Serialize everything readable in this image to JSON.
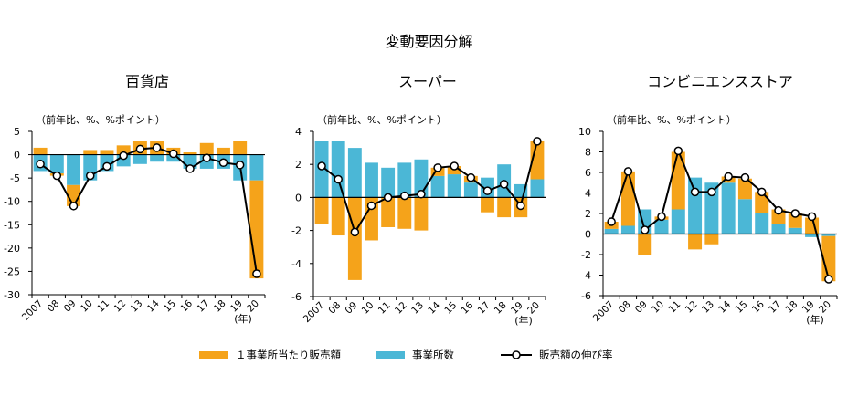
{
  "figure_title": "変動要因分解",
  "colors": {
    "per_store": "#F5A31A",
    "stores": "#4BB7D6",
    "growth_line": "#000000",
    "marker_fill": "#ffffff"
  },
  "legend": {
    "per_store": "１事業所当たり販売額",
    "stores": "事業所数",
    "growth": "販売額の伸び率"
  },
  "chart_data": [
    {
      "type": "bar",
      "title": "百貨店",
      "ylabel": "（前年比、%、%ポイント）",
      "xunit": "(年)",
      "categories": [
        "2007",
        "08",
        "09",
        "10",
        "11",
        "12",
        "13",
        "14",
        "15",
        "16",
        "17",
        "18",
        "19",
        "20"
      ],
      "ylim": [
        -30,
        5
      ],
      "yticks": [
        5,
        0,
        -5,
        -10,
        -15,
        -20,
        -25,
        -30
      ],
      "series": [
        {
          "key": "per_store",
          "name": "１事業所当たり販売額",
          "values": [
            1.5,
            -0.5,
            -4.5,
            1.0,
            1.0,
            2.0,
            3.0,
            3.0,
            1.5,
            0.5,
            2.5,
            1.5,
            3.0,
            -21.0
          ]
        },
        {
          "key": "stores",
          "name": "事業所数",
          "values": [
            -3.5,
            -4.0,
            -6.5,
            -5.5,
            -3.5,
            -2.5,
            -2.0,
            -1.5,
            -1.5,
            -3.0,
            -3.0,
            -3.0,
            -5.5,
            -5.5
          ]
        },
        {
          "key": "growth",
          "name": "販売額の伸び率",
          "values": [
            -2.0,
            -4.5,
            -11.0,
            -4.5,
            -2.5,
            -0.2,
            1.2,
            1.5,
            0.2,
            -3.0,
            -0.7,
            -1.7,
            -2.2,
            -25.5
          ]
        }
      ]
    },
    {
      "type": "bar",
      "title": "スーパー",
      "ylabel": "（前年比、%、%ポイント）",
      "xunit": "(年)",
      "categories": [
        "2007",
        "08",
        "09",
        "10",
        "11",
        "12",
        "13",
        "14",
        "15",
        "16",
        "17",
        "18",
        "19",
        "20"
      ],
      "ylim": [
        -6,
        4
      ],
      "yticks": [
        4,
        2,
        0,
        -2,
        -4,
        -6
      ],
      "series": [
        {
          "key": "per_store",
          "name": "１事業所当たり販売額",
          "values": [
            -1.6,
            -2.3,
            -5.0,
            -2.6,
            -1.8,
            -1.9,
            -2.0,
            0.5,
            0.5,
            0.4,
            -0.9,
            -1.2,
            -1.2,
            2.3
          ]
        },
        {
          "key": "stores",
          "name": "事業所数",
          "values": [
            3.4,
            3.4,
            3.0,
            2.1,
            1.8,
            2.1,
            2.3,
            1.3,
            1.4,
            0.9,
            1.2,
            2.0,
            0.8,
            1.1
          ]
        },
        {
          "key": "growth",
          "name": "販売額の伸び率",
          "values": [
            1.9,
            1.1,
            -2.1,
            -0.5,
            0.0,
            0.1,
            0.2,
            1.8,
            1.9,
            1.2,
            0.4,
            0.8,
            -0.5,
            3.4
          ]
        }
      ]
    },
    {
      "type": "bar",
      "title": "コンビニエンスストア",
      "ylabel": "（前年比、%、%ポイント）",
      "xunit": "(年)",
      "categories": [
        "2007",
        "08",
        "09",
        "10",
        "11",
        "12",
        "13",
        "14",
        "15",
        "16",
        "17",
        "18",
        "19",
        "20"
      ],
      "ylim": [
        -6,
        10
      ],
      "yticks": [
        10,
        8,
        6,
        4,
        2,
        0,
        -2,
        -4,
        -6
      ],
      "series": [
        {
          "key": "per_store",
          "name": "１事業所当たり販売額",
          "values": [
            0.7,
            5.3,
            -2.0,
            0.3,
            5.6,
            -1.5,
            -1.0,
            0.6,
            2.0,
            2.1,
            1.4,
            1.4,
            1.6,
            -4.4
          ]
        },
        {
          "key": "stores",
          "name": "事業所数",
          "values": [
            0.5,
            0.8,
            2.4,
            1.4,
            2.4,
            5.5,
            5.0,
            5.0,
            3.4,
            2.0,
            1.0,
            0.6,
            -0.3,
            -0.2
          ]
        },
        {
          "key": "growth",
          "name": "販売額の伸び率",
          "values": [
            1.2,
            6.1,
            0.4,
            1.7,
            8.1,
            4.1,
            4.1,
            5.6,
            5.5,
            4.1,
            2.3,
            2.0,
            1.7,
            -4.4
          ]
        }
      ]
    }
  ]
}
